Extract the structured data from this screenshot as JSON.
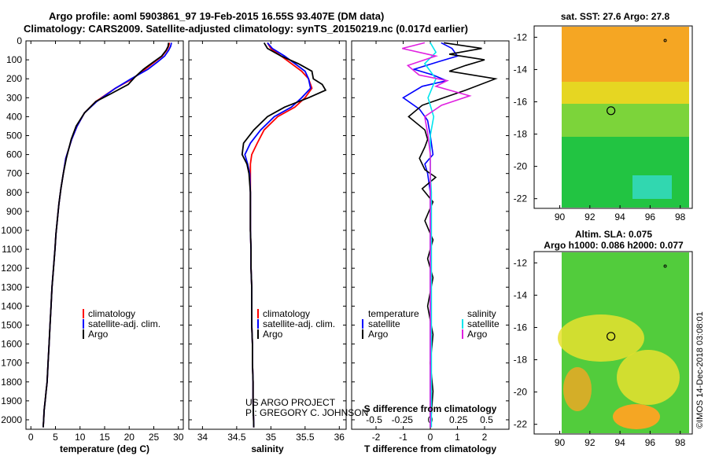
{
  "header": {
    "line1": "Argo profile: aoml 5903861_97 19-Feb-2015 16.55S 93.407E (DM data)",
    "line2": "Climatology: CARS2009. Satellite-adjusted climatology: synTS_20150219.nc (0.017d earlier)"
  },
  "watermark": "©IMOS 14-Dec-2018 03:08:01",
  "credit": {
    "line1": "US ARGO PROJECT",
    "line2": "PI: GREGORY C. JOHNSON"
  },
  "colors": {
    "climatology": "#ff0000",
    "satellite": "#0000ff",
    "argo": "#000000",
    "sal_satellite": "#00e5ee",
    "sal_argo": "#e020e0"
  },
  "chart_data": [
    {
      "type": "line",
      "name": "temperature",
      "xlabel": "temperature (deg C)",
      "ylabel": "",
      "xlim": [
        -1,
        31
      ],
      "ylim": [
        2050,
        0
      ],
      "xticks": [
        0,
        5,
        10,
        15,
        20,
        25,
        30
      ],
      "yticks": [
        0,
        100,
        200,
        300,
        400,
        500,
        600,
        700,
        800,
        900,
        1000,
        1100,
        1200,
        1300,
        1400,
        1500,
        1600,
        1700,
        1800,
        1900,
        2000
      ],
      "legend": [
        "climatology",
        "satellite-adj. clim.",
        "Argo"
      ],
      "series": [
        {
          "name": "climatology",
          "color": "#ff0000",
          "x": [
            28.2,
            28,
            27.6,
            26.7,
            25.2,
            23.2,
            20.7,
            17.2,
            13.2,
            10.9,
            9.4,
            8.3,
            7.1,
            6.6,
            6.1,
            5.7,
            5.4,
            5.1,
            4.9,
            4.6,
            4.3,
            4.1,
            3.9,
            3.7,
            3.5,
            3.3,
            3.1,
            2.9,
            2.7,
            2.6,
            2.5
          ],
          "y": [
            10,
            30,
            50,
            80,
            110,
            150,
            200,
            250,
            320,
            380,
            450,
            520,
            620,
            700,
            780,
            860,
            940,
            1020,
            1100,
            1200,
            1300,
            1400,
            1500,
            1600,
            1700,
            1800,
            1850,
            1900,
            1950,
            2000,
            2040
          ]
        },
        {
          "name": "satellite-adj. clim.",
          "color": "#0000ff",
          "x": [
            28.6,
            28.4,
            28,
            27.2,
            25.8,
            23.8,
            20.4,
            17.2,
            13.4,
            10.9,
            9.4,
            8.3,
            7.1,
            6.6,
            6.1,
            5.7,
            5.4,
            5.1,
            4.9,
            4.6,
            4.3,
            4.1,
            3.9,
            3.7,
            3.5,
            3.3,
            3.1,
            2.9,
            2.7,
            2.6,
            2.5
          ],
          "y": [
            10,
            30,
            50,
            80,
            110,
            150,
            200,
            250,
            320,
            380,
            450,
            520,
            620,
            700,
            780,
            860,
            940,
            1020,
            1100,
            1200,
            1300,
            1400,
            1500,
            1600,
            1700,
            1800,
            1850,
            1900,
            1950,
            2000,
            2040
          ]
        },
        {
          "name": "Argo",
          "color": "#000000",
          "x": [
            28,
            27.9,
            27.5,
            26.6,
            25,
            22.9,
            21.2,
            19.8,
            16.2,
            13.2,
            10.9,
            9.2,
            8.2,
            7.2,
            6.6,
            6.1,
            5.7,
            5.4,
            5.1,
            4.9,
            4.6,
            4.3,
            4.1,
            3.9,
            3.7,
            3.5,
            3.3,
            3.1,
            2.9,
            2.7,
            2.6,
            2.5
          ],
          "y": [
            10,
            30,
            50,
            80,
            110,
            150,
            190,
            230,
            280,
            320,
            380,
            450,
            520,
            620,
            700,
            780,
            860,
            940,
            1020,
            1100,
            1200,
            1300,
            1400,
            1500,
            1600,
            1700,
            1800,
            1850,
            1900,
            1950,
            2000,
            2040
          ]
        }
      ]
    },
    {
      "type": "line",
      "name": "salinity",
      "xlabel": "salinity",
      "xlim": [
        33.8,
        36.1
      ],
      "ylim": [
        2050,
        0
      ],
      "xticks": [
        34,
        34.5,
        35,
        35.5,
        36
      ],
      "xticklabels": [
        "34",
        "34.5",
        "35",
        "35.5",
        "36"
      ],
      "legend": [
        "climatology",
        "satellite-adj. clim.",
        "Argo"
      ],
      "series": [
        {
          "name": "climatology",
          "color": "#ff0000",
          "x": [
            34.95,
            35.0,
            35.15,
            35.3,
            35.45,
            35.55,
            35.6,
            35.5,
            35.35,
            35.1,
            34.9,
            34.8,
            34.72,
            34.7,
            34.7,
            34.7,
            34.7,
            34.7,
            34.71,
            34.71,
            34.72,
            34.72,
            34.72,
            34.73,
            34.73,
            34.74,
            34.74,
            34.75
          ],
          "y": [
            10,
            40,
            80,
            120,
            160,
            200,
            250,
            300,
            350,
            400,
            470,
            540,
            600,
            650,
            700,
            800,
            900,
            1000,
            1100,
            1200,
            1300,
            1400,
            1500,
            1600,
            1700,
            1800,
            1900,
            2040
          ]
        },
        {
          "name": "satellite-adj. clim.",
          "color": "#0000ff",
          "x": [
            34.95,
            35.02,
            35.2,
            35.35,
            35.5,
            35.55,
            35.58,
            35.45,
            35.3,
            35.05,
            34.85,
            34.7,
            34.62,
            34.66,
            34.69,
            34.7,
            34.7,
            34.7,
            34.71,
            34.71,
            34.72,
            34.72,
            34.72,
            34.73,
            34.73,
            34.74,
            34.74,
            34.75
          ],
          "y": [
            10,
            40,
            80,
            120,
            160,
            200,
            250,
            300,
            350,
            400,
            470,
            540,
            600,
            650,
            700,
            800,
            900,
            1000,
            1100,
            1200,
            1300,
            1400,
            1500,
            1600,
            1700,
            1800,
            1900,
            2040
          ]
        },
        {
          "name": "Argo",
          "color": "#000000",
          "x": [
            34.9,
            34.95,
            35.15,
            35.4,
            35.6,
            35.62,
            35.75,
            35.8,
            35.55,
            35.2,
            34.95,
            34.75,
            34.6,
            34.58,
            34.65,
            34.68,
            34.7,
            34.7,
            34.7,
            34.71,
            34.71,
            34.72,
            34.72,
            34.72,
            34.73,
            34.73,
            34.74,
            34.74,
            34.75
          ],
          "y": [
            10,
            40,
            80,
            120,
            160,
            200,
            230,
            260,
            300,
            350,
            400,
            470,
            540,
            600,
            650,
            700,
            800,
            900,
            1000,
            1100,
            1200,
            1300,
            1400,
            1500,
            1600,
            1700,
            1800,
            1900,
            2040
          ]
        }
      ]
    },
    {
      "type": "line",
      "name": "difference",
      "xlabel": "T difference from climatology",
      "toplabel": "S difference from climatology",
      "xlim": [
        -2.9,
        2.9
      ],
      "ylim": [
        2050,
        0
      ],
      "xticks": [
        -2,
        -1,
        0,
        1,
        2
      ],
      "topticks": [
        -0.5,
        -0.25,
        0,
        0.25,
        0.5
      ],
      "topticklabels": [
        "-0.5",
        "-0.25",
        "0",
        "0.25",
        "0.5"
      ],
      "legend_titles": [
        "temperature",
        "salinity"
      ],
      "legend_left": [
        "satellite",
        "Argo"
      ],
      "legend_right": [
        "satellite",
        "Argo"
      ],
      "series": [
        {
          "name": "T satellite",
          "color": "#0000ff",
          "x": [
            0.4,
            0.8,
            1.0,
            0.3,
            -0.6,
            0.1,
            0.6,
            -0.3,
            -1.0,
            -0.4,
            -0.1,
            0.0,
            0.1,
            -0.2,
            -0.1,
            0,
            0,
            0,
            0,
            0,
            0,
            0,
            0,
            0,
            0,
            0,
            0
          ],
          "y": [
            10,
            40,
            80,
            110,
            150,
            180,
            210,
            240,
            300,
            360,
            420,
            500,
            600,
            650,
            700,
            800,
            900,
            1000,
            1100,
            1200,
            1300,
            1400,
            1500,
            1600,
            1700,
            1800,
            2040
          ]
        },
        {
          "name": "T Argo",
          "color": "#000000",
          "x": [
            0.5,
            1.9,
            0.7,
            2.0,
            1.3,
            0.7,
            2.4,
            1.3,
            0.5,
            -0.3,
            -0.8,
            -0.2,
            -0.1,
            -0.2,
            -0.4,
            -0.2,
            0.2,
            -0.3,
            0.1,
            -0.2,
            0.1,
            -0.1,
            0.1,
            -0.1,
            0.1,
            0,
            0.1,
            0
          ],
          "y": [
            10,
            40,
            70,
            100,
            130,
            160,
            200,
            260,
            300,
            340,
            400,
            470,
            520,
            560,
            620,
            680,
            720,
            780,
            850,
            950,
            1050,
            1150,
            1250,
            1400,
            1550,
            1700,
            1850,
            2040
          ]
        },
        {
          "name": "S satellite",
          "color": "#00e5ee",
          "x": [
            0,
            0.05,
            -0.05,
            0.05,
            -0.02,
            0.03,
            0,
            0,
            0,
            0.01,
            0.01,
            0.01,
            0.01,
            0.01,
            0.01,
            0.01,
            0.01,
            0.01
          ],
          "y": [
            10,
            60,
            120,
            200,
            300,
            400,
            500,
            600,
            700,
            800,
            1000,
            1200,
            1400,
            1600,
            1800,
            1900,
            2000,
            2040
          ]
        },
        {
          "name": "S Argo",
          "color": "#e020e0",
          "x": [
            -0.05,
            -0.25,
            0.05,
            -0.2,
            -0.1,
            0.15,
            0.05,
            0.35,
            0.1,
            -0.05,
            -0.02,
            0,
            0,
            0,
            0,
            0
          ],
          "y": [
            10,
            40,
            80,
            130,
            180,
            210,
            240,
            290,
            340,
            400,
            500,
            600,
            700,
            900,
            1200,
            2040
          ]
        }
      ]
    }
  ],
  "maps": {
    "sst": {
      "title": "sat. SST: 27.6 Argo: 27.8",
      "xticks": [
        90,
        92,
        94,
        96,
        98
      ],
      "yticks": [
        -12,
        -14,
        -16,
        -18,
        -20,
        -22
      ],
      "xlim": [
        88.3,
        98.8
      ],
      "ylim": [
        -22.6,
        -11.3
      ],
      "argo_lon": 93.4,
      "argo_lat": -16.55,
      "marker_lon": 97,
      "marker_lat": -12.2
    },
    "sla": {
      "title_line1": "Altim. SLA: 0.075",
      "title_line2": "Argo h1000: 0.086 h2000: 0.077",
      "xticks": [
        90,
        92,
        94,
        96,
        98
      ],
      "yticks": [
        -12,
        -14,
        -16,
        -18,
        -20,
        -22
      ],
      "xlim": [
        88.3,
        98.8
      ],
      "ylim": [
        -22.6,
        -11.3
      ],
      "argo_lon": 93.4,
      "argo_lat": -16.55,
      "marker_lon": 97,
      "marker_lat": -12.2
    }
  }
}
